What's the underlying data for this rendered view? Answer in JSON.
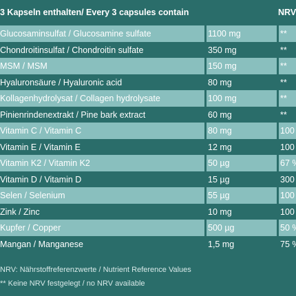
{
  "header": {
    "name": "3 Kapseln enthalten/ Every 3 capsules contain",
    "nrv": "NRV"
  },
  "rows": [
    {
      "name": "Glucosaminsulfat / Glucosamine sulfate",
      "amount": "1100 mg",
      "nrv": "**"
    },
    {
      "name": "Chondroitinsulfat / Chondroitin sulfate",
      "amount": "350 mg",
      "nrv": "**"
    },
    {
      "name": "MSM / MSM",
      "amount": "150 mg",
      "nrv": "**"
    },
    {
      "name": "Hyaluronsäure / Hyaluronic acid",
      "amount": "80 mg",
      "nrv": "**"
    },
    {
      "name": "Kollagenhydrolysat / Collagen hydrolysate",
      "amount": "100 mg",
      "nrv": "**"
    },
    {
      "name": "Pinienrindenextrakt / Pine bark extract",
      "amount": "60 mg",
      "nrv": "**"
    },
    {
      "name": "Vitamin C / Vitamin C",
      "amount": "80 mg",
      "nrv": "100"
    },
    {
      "name": "Vitamin E / Vitamin E",
      "amount": "12 mg",
      "nrv": "100"
    },
    {
      "name": "Vitamin K2 / Vitamin K2",
      "amount": "50 µg",
      "nrv": "67 %"
    },
    {
      "name": "Vitamin D / Vitamin D",
      "amount": "15 µg",
      "nrv": "300"
    },
    {
      "name": "Selen / Selenium",
      "amount": "55 µg",
      "nrv": "100"
    },
    {
      "name": "Zink / Zinc",
      "amount": "10 mg",
      "nrv": "100"
    },
    {
      "name": "Kupfer / Copper",
      "amount": "500 µg",
      "nrv": "50 %"
    },
    {
      "name": "Mangan / Manganese",
      "amount": "1,5 mg",
      "nrv": "75 %"
    }
  ],
  "notes": {
    "nrv_definition": "NRV: Nährstoffreferenzwerte / Nutrient Reference Values",
    "no_nrv": "** Keine NRV festgelegt / no NRV available"
  },
  "colors": {
    "background": "#2a6d6a",
    "row_light": "#89bfbe"
  }
}
